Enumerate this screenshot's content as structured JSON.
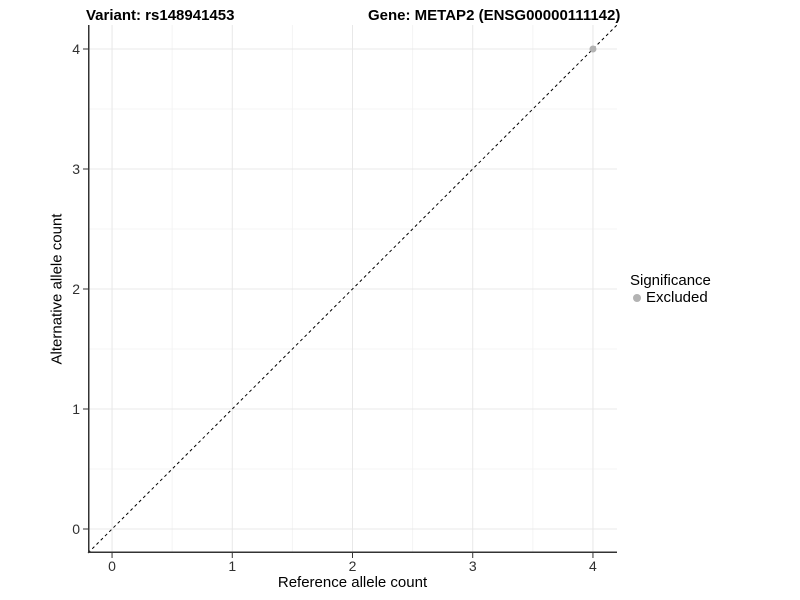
{
  "chart_data": {
    "type": "scatter",
    "title_left": "Variant: rs148941453",
    "title_right": "Gene: METAP2 (ENSG00000111142)",
    "xlabel": "Reference allele count",
    "ylabel": "Alternative allele count",
    "xlim": [
      -0.2,
      4.2
    ],
    "ylim": [
      -0.2,
      4.2
    ],
    "x_ticks": [
      0,
      1,
      2,
      3,
      4
    ],
    "y_ticks": [
      0,
      1,
      2,
      3,
      4
    ],
    "grid": {
      "major": true,
      "minor": true
    },
    "legend": {
      "title": "Significance",
      "position": "right",
      "entries": [
        {
          "label": "Excluded",
          "color": "#b3b3b3"
        }
      ]
    },
    "series": [
      {
        "name": "Excluded",
        "color": "#b3b3b3",
        "marker_radius": 3.5,
        "points": [
          [
            4,
            4
          ]
        ]
      }
    ],
    "reference_line": {
      "kind": "identity y=x",
      "from": [
        -0.2,
        -0.2
      ],
      "to": [
        4.2,
        4.2
      ],
      "style": "dashed",
      "color": "#000000"
    },
    "colors": {
      "major_grid": "#e8e8e8",
      "minor_grid": "#f4f4f4",
      "axis_line": "#333333",
      "tick_text": "#303030"
    }
  }
}
